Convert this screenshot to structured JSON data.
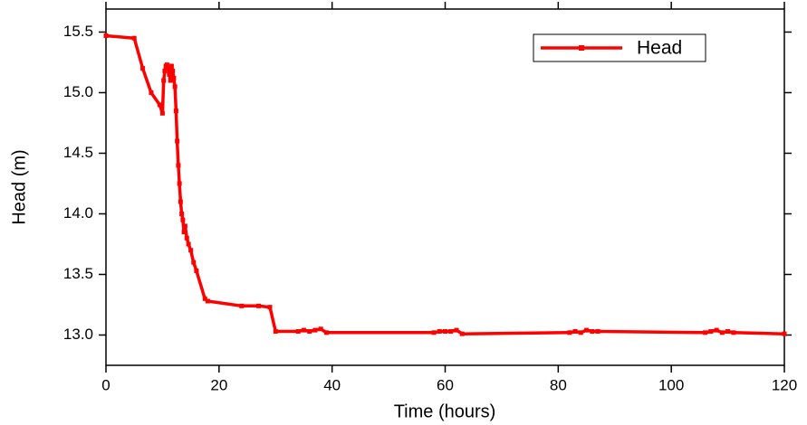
{
  "chart_data": {
    "type": "line",
    "x_label": "Time (hours)",
    "y_label": "Head (m)",
    "xlim": [
      0,
      120
    ],
    "xticks": [
      0,
      20,
      40,
      60,
      80,
      100,
      120
    ],
    "ylim": [
      12.75,
      15.69
    ],
    "yticks": [
      {
        "value": 13,
        "label": "13.0"
      },
      {
        "value": 13.5,
        "label": "13.5"
      },
      {
        "value": 14,
        "label": "14.0"
      },
      {
        "value": 14.5,
        "label": "14.5"
      },
      {
        "value": 15,
        "label": "15.0"
      },
      {
        "value": 15.5,
        "label": "15.5"
      }
    ],
    "legend_position": "upper right",
    "series": [
      {
        "name": "Head",
        "color": "#ff0000",
        "x": [
          0,
          5,
          6.5,
          8,
          9.5,
          10,
          10.2,
          10.4,
          10.6,
          10.8,
          11,
          11.2,
          11.4,
          11.6,
          11.8,
          12,
          12.2,
          12.4,
          12.6,
          12.8,
          13,
          13.2,
          13.4,
          13.6,
          13.8,
          14,
          14.3,
          14.6,
          15,
          15.5,
          16,
          17.5,
          18,
          24,
          27,
          29,
          30,
          34,
          35,
          36,
          37,
          38,
          39,
          58,
          59,
          60,
          61,
          62,
          63,
          82,
          83,
          84,
          85,
          86,
          87,
          106,
          107,
          108,
          109,
          110,
          111,
          120
        ],
        "values": [
          15.47,
          15.45,
          15.2,
          15.0,
          14.9,
          14.83,
          15.1,
          15.18,
          15.22,
          15.23,
          15.2,
          15.15,
          15.1,
          15.22,
          15.18,
          15.12,
          15.05,
          14.85,
          14.6,
          14.4,
          14.25,
          14.1,
          14.0,
          13.95,
          13.85,
          13.9,
          13.8,
          13.75,
          13.7,
          13.6,
          13.53,
          13.3,
          13.28,
          13.24,
          13.24,
          13.23,
          13.03,
          13.03,
          13.04,
          13.03,
          13.04,
          13.05,
          13.02,
          13.02,
          13.03,
          13.03,
          13.03,
          13.04,
          13.01,
          13.02,
          13.03,
          13.02,
          13.04,
          13.03,
          13.03,
          13.02,
          13.03,
          13.04,
          13.02,
          13.03,
          13.02,
          13.01
        ]
      }
    ]
  }
}
